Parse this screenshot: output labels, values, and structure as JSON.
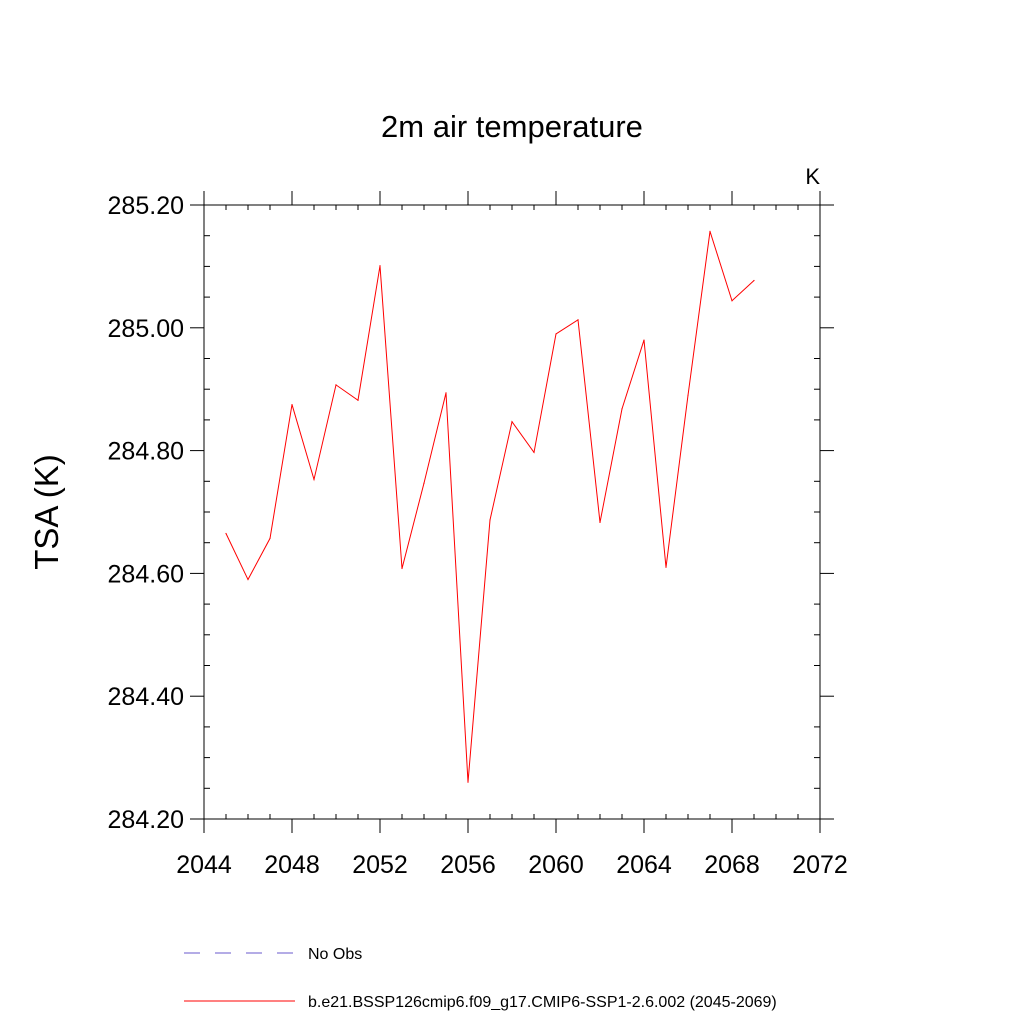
{
  "chart_data": {
    "type": "line",
    "title": "2m air temperature",
    "units_label": "K",
    "xlabel": "",
    "ylabel": "TSA  (K)",
    "xlim": [
      2044,
      2072
    ],
    "ylim": [
      284.2,
      285.2
    ],
    "x_ticks": [
      2044,
      2048,
      2052,
      2056,
      2060,
      2064,
      2068,
      2072
    ],
    "x_tick_labels": [
      "2044",
      "2048",
      "2052",
      "2056",
      "2060",
      "2064",
      "2068",
      "2072"
    ],
    "y_ticks": [
      284.2,
      284.4,
      284.6,
      284.8,
      285.0,
      285.2
    ],
    "y_tick_labels": [
      "284.20",
      "284.40",
      "284.60",
      "284.80",
      "285.00",
      "285.20"
    ],
    "grid": false,
    "legend_position": "bottom",
    "series": [
      {
        "name": "No Obs",
        "color": "#6a5acd",
        "style": "dashed",
        "x": [],
        "values": []
      },
      {
        "name": "b.e21.BSSP126cmip6.f09_g17.CMIP6-SSP1-2.6.002 (2045-2069)",
        "color": "#ff0000",
        "style": "solid",
        "x": [
          2045,
          2046,
          2047,
          2048,
          2049,
          2050,
          2051,
          2052,
          2053,
          2054,
          2055,
          2056,
          2057,
          2058,
          2059,
          2060,
          2061,
          2062,
          2063,
          2064,
          2065,
          2066,
          2067,
          2068,
          2069
        ],
        "values": [
          284.665,
          284.59,
          284.657,
          284.875,
          284.753,
          284.907,
          284.882,
          285.101,
          284.608,
          284.747,
          284.894,
          284.26,
          284.687,
          284.847,
          284.797,
          284.99,
          285.013,
          284.683,
          284.868,
          284.98,
          284.61,
          284.89,
          285.157,
          285.044,
          285.077
        ]
      }
    ]
  }
}
